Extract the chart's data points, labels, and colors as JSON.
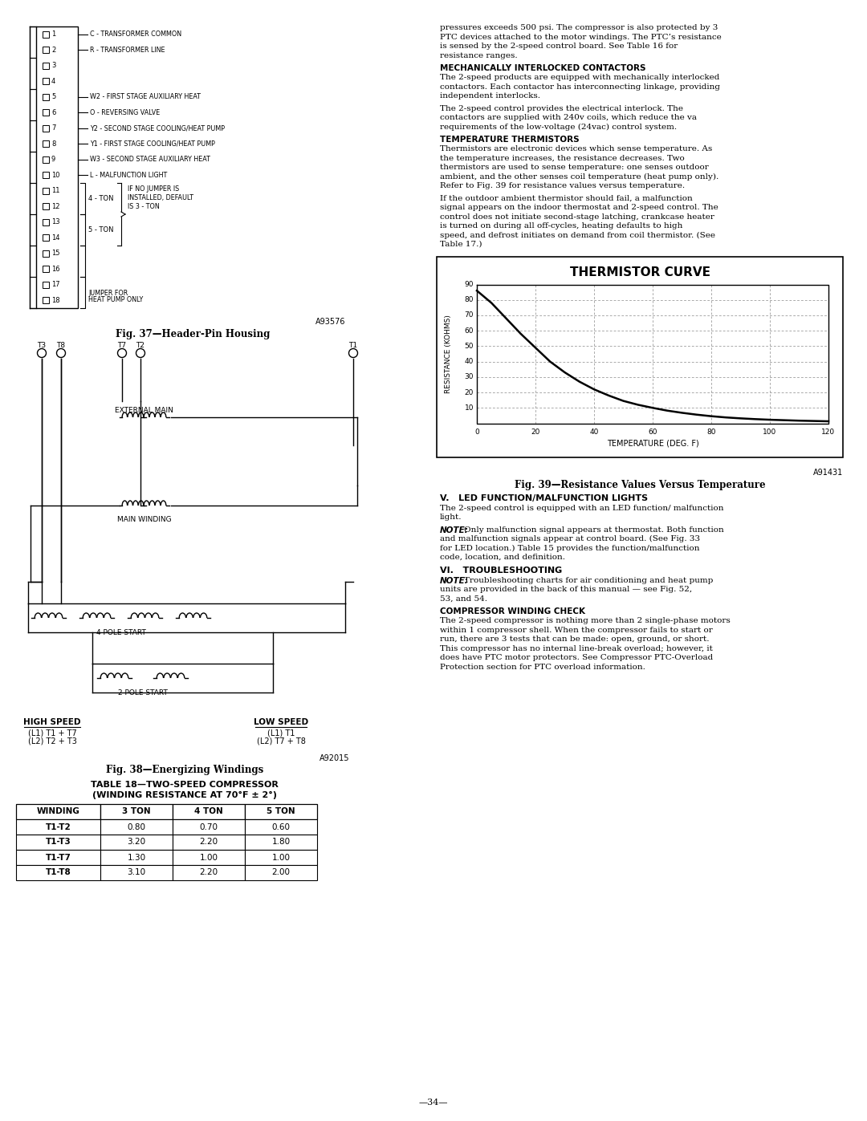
{
  "page_bg": "#ffffff",
  "left_col": {
    "header_pin_labels": [
      [
        "1",
        "C - TRANSFORMER COMMON"
      ],
      [
        "2",
        "R - TRANSFORMER LINE"
      ],
      [
        "3",
        ""
      ],
      [
        "4",
        ""
      ],
      [
        "5",
        "W2 - FIRST STAGE AUXILIARY HEAT"
      ],
      [
        "6",
        "O - REVERSING VALVE"
      ],
      [
        "7",
        "Y2 - SECOND STAGE COOLING/HEAT PUMP"
      ],
      [
        "8",
        "Y1 - FIRST STAGE COOLING/HEAT PUMP"
      ],
      [
        "9",
        "W3 - SECOND STAGE AUXILIARY HEAT"
      ],
      [
        "10",
        "L - MALFUNCTION LIGHT"
      ],
      [
        "11",
        ""
      ],
      [
        "12",
        ""
      ],
      [
        "13",
        ""
      ],
      [
        "14",
        ""
      ],
      [
        "15",
        ""
      ],
      [
        "16",
        ""
      ],
      [
        "17",
        ""
      ],
      [
        "18",
        ""
      ]
    ],
    "fig37_caption": "Fig. 37—Header-Pin Housing",
    "fig37_code": "A93576",
    "fig38_caption": "Fig. 38—Energizing Windings",
    "fig38_code": "A92015",
    "table_title1": "TABLE 18—TWO-SPEED COMPRESSOR",
    "table_title2": "(WINDING RESISTANCE AT 70°F ± 2°)",
    "table_headers": [
      "WINDING",
      "3 TON",
      "4 TON",
      "5 TON"
    ],
    "table_rows": [
      [
        "T1-T2",
        "0.80",
        "0.70",
        "0.60"
      ],
      [
        "T1-T3",
        "3.20",
        "2.20",
        "1.80"
      ],
      [
        "T1-T7",
        "1.30",
        "1.00",
        "1.00"
      ],
      [
        "T1-T8",
        "3.10",
        "2.20",
        "2.00"
      ]
    ]
  },
  "right_col": {
    "para1": "pressures exceeds 500 psi. The compressor is also protected by 3 PTC devices attached to the motor windings. The PTC’s resistance is sensed by the 2-speed control board. See Table 16 for resistance ranges.",
    "heading2": "MECHANICALLY INTERLOCKED CONTACTORS",
    "para2": "The 2-speed products are equipped with mechanically interlocked contactors. Each contactor has interconnecting linkage, providing independent interlocks.",
    "para3": "The 2-speed control provides the electrical interlock. The contactors are supplied with 240v coils, which reduce the va requirements of the low-voltage (24vac) control system.",
    "heading3": "TEMPERATURE THERMISTORS",
    "para4": "Thermistors are electronic devices which sense temperature. As the temperature increases, the resistance decreases. Two thermistors are used to sense temperature: one senses outdoor ambient, and the other senses coil temperature (heat pump only). Refer to Fig. 39 for resistance values versus temperature.",
    "para5": "If the outdoor ambient thermistor should fail, a malfunction signal appears on the indoor thermostat and 2-speed control. The control does not initiate second-stage latching, crankcase heater is turned on during all off-cycles, heating defaults to high speed, and defrost initiates on demand from coil thermistor. (See Table 17.)",
    "chart_title": "THERMISTOR CURVE",
    "chart_xlabel": "TEMPERATURE (DEG. F)",
    "chart_ylabel": "RESISTANCE (KOHMS)",
    "chart_xlim": [
      0,
      120
    ],
    "chart_ylim": [
      0,
      90
    ],
    "chart_xticks": [
      0,
      20,
      40,
      60,
      80,
      100,
      120
    ],
    "chart_yticks": [
      0,
      10,
      20,
      30,
      40,
      50,
      60,
      70,
      80,
      90
    ],
    "thermistor_x": [
      0,
      5,
      10,
      15,
      20,
      25,
      30,
      35,
      40,
      45,
      50,
      55,
      60,
      65,
      70,
      75,
      80,
      85,
      90,
      95,
      100,
      105,
      110,
      115,
      120
    ],
    "thermistor_y": [
      86,
      78,
      68,
      58,
      49,
      40,
      33,
      27,
      22,
      18,
      14.5,
      12,
      10,
      8.2,
      6.8,
      5.6,
      4.6,
      3.8,
      3.2,
      2.7,
      2.3,
      2.0,
      1.7,
      1.5,
      1.3
    ],
    "fig39_caption": "Fig. 39—Resistance Values Versus Temperature",
    "fig39_code": "A91431",
    "heading_v": "V.   LED FUNCTION/MALFUNCTION LIGHTS",
    "para6": "The 2-speed control is equipped with an LED function/ malfunction light.",
    "note1_bold": "NOTE:",
    "note1_rest": " Only malfunction signal appears at thermostat. Both function and malfunction signals appear at control board. (See Fig. 33 for LED location.) Table 15 provides the function/malfunction code, location, and definition.",
    "heading_vi": "VI.   TROUBLESHOOTING",
    "note2_bold": "NOTE:",
    "note2_rest": " Troubleshooting charts for air conditioning and heat pump units are provided in the back of this manual — see Fig. 52, 53, and 54.",
    "heading_cw": "COMPRESSOR WINDING CHECK",
    "para7": "The 2-speed compressor is nothing more than 2 single-phase motors within 1 compressor shell. When the compressor fails to start or run, there are 3 tests that can be made: open, ground, or short. This compressor has no internal line-break overload; however, it does have PTC motor protectors. See Compressor PTC-Overload Protection section for PTC overload information."
  }
}
